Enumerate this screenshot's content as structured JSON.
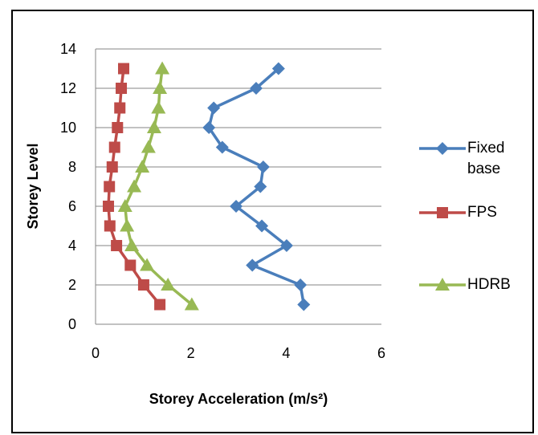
{
  "chart_data": {
    "type": "line",
    "xlabel": "Storey Acceleration (m/s²)",
    "ylabel": "Storey Level",
    "y": [
      1,
      2,
      3,
      4,
      5,
      6,
      7,
      8,
      9,
      10,
      11,
      12,
      13
    ],
    "series": [
      {
        "name": "Fixed base",
        "color": "#4a7ebb",
        "marker": "diamond",
        "values": [
          4.37,
          4.3,
          3.29,
          4.01,
          3.49,
          2.95,
          3.46,
          3.52,
          2.66,
          2.38,
          2.48,
          3.37,
          3.84
        ]
      },
      {
        "name": "FPS",
        "color": "#be4b48",
        "marker": "square",
        "values": [
          1.35,
          1.01,
          0.73,
          0.44,
          0.3,
          0.27,
          0.29,
          0.35,
          0.4,
          0.46,
          0.51,
          0.54,
          0.59
        ]
      },
      {
        "name": "HDRB",
        "color": "#98b954",
        "marker": "triangle",
        "values": [
          2.02,
          1.52,
          1.08,
          0.76,
          0.66,
          0.62,
          0.81,
          0.98,
          1.11,
          1.23,
          1.32,
          1.35,
          1.4
        ]
      }
    ],
    "xlim": [
      0,
      6
    ],
    "xticks": [
      0,
      2,
      4,
      6
    ],
    "ylim": [
      0,
      14
    ],
    "yticks": [
      0,
      2,
      4,
      6,
      8,
      10,
      12,
      14
    ],
    "grid": true,
    "legend": "right"
  }
}
